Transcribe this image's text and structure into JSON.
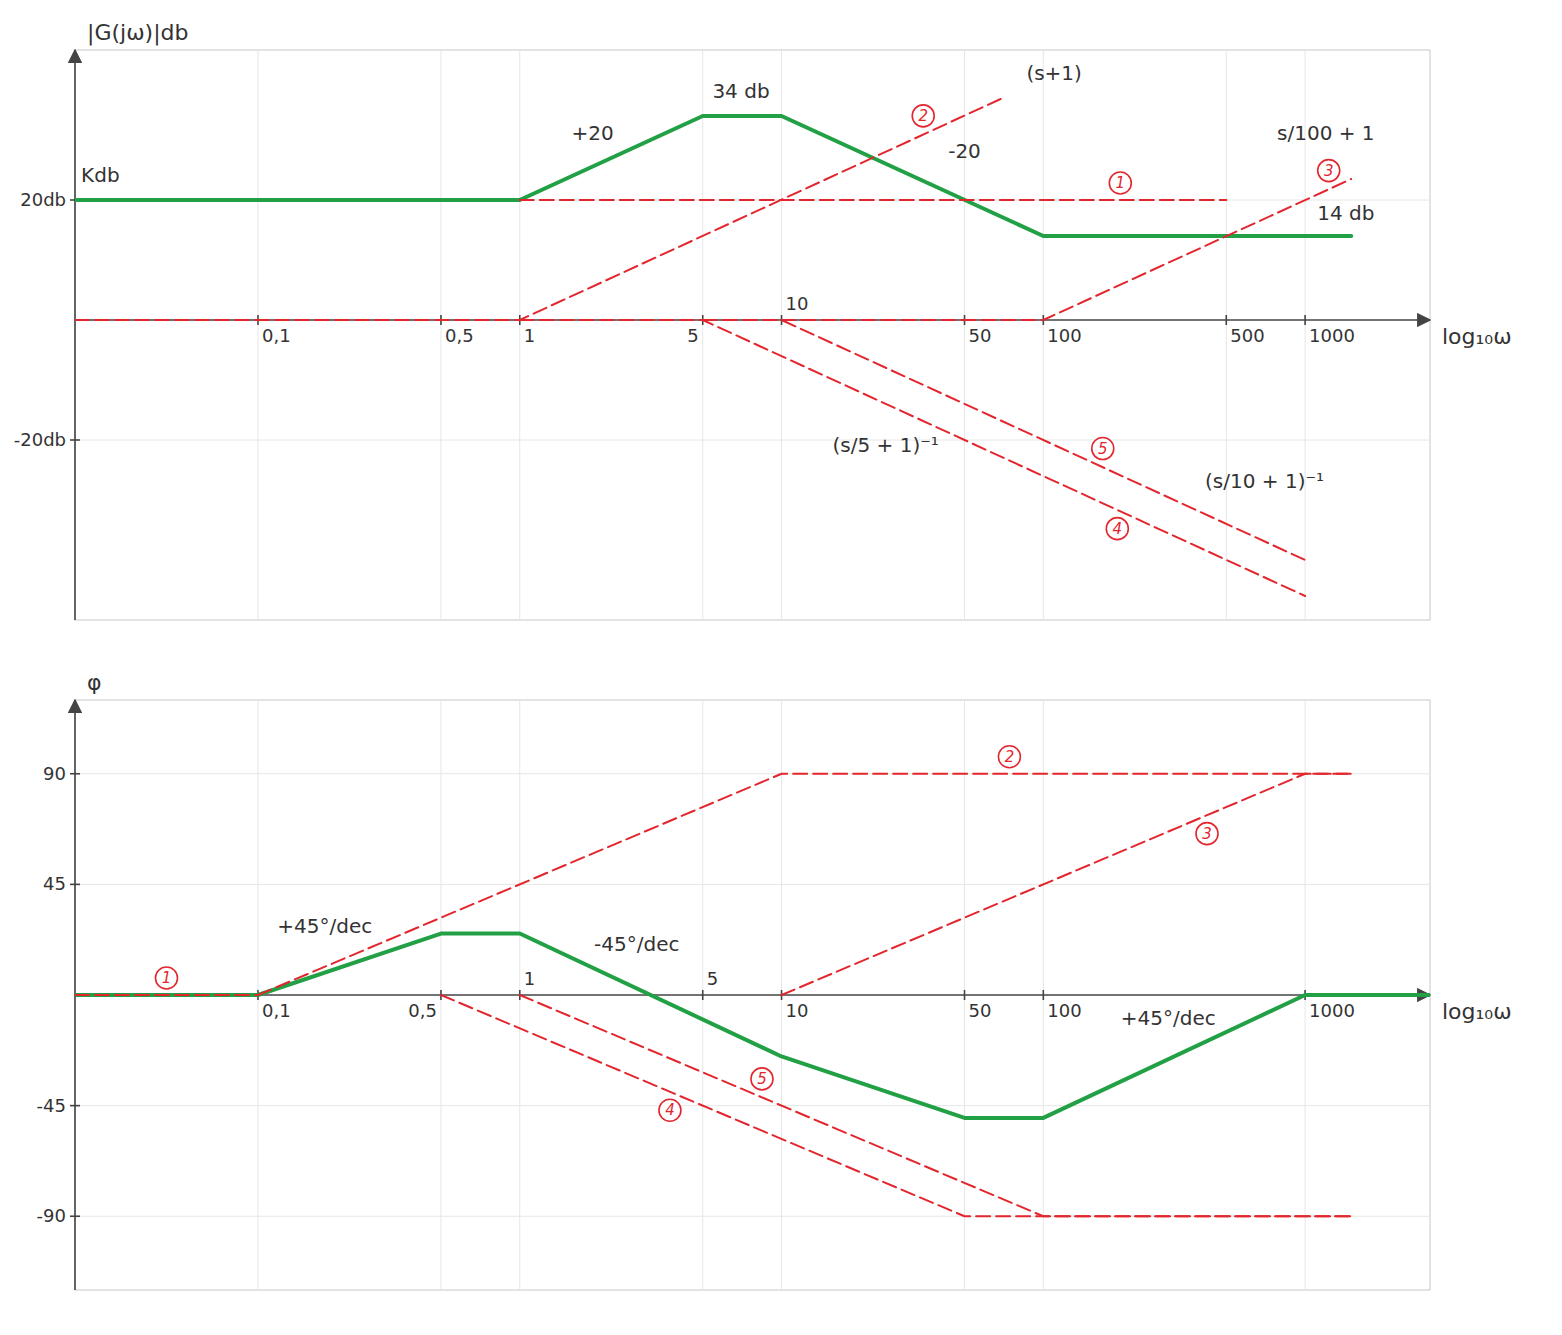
{
  "chart_data": [
    {
      "type": "line",
      "log": "x",
      "grid": true,
      "x_label": "log₁₀ω",
      "y_label": "|G(jω)|db",
      "xlim": [
        0.02,
        3000
      ],
      "ylim": [
        -50,
        45
      ],
      "xticks": [
        {
          "value": 0.1,
          "label": "0,1"
        },
        {
          "value": 0.5,
          "label": "0,5"
        },
        1,
        5,
        10,
        50,
        100,
        500,
        1000
      ],
      "yticks": [
        {
          "value": 20,
          "label": "20db"
        },
        {
          "value": -20,
          "label": "-20db"
        }
      ],
      "series": [
        {
          "color": "#22a045",
          "line_style": "solid",
          "x": [
            0.02,
            1,
            5,
            10,
            100,
            1500
          ],
          "values": [
            20,
            20,
            34,
            34,
            14,
            14
          ]
        },
        {
          "name": "1",
          "color": "#e3262d",
          "line_style": "dashed",
          "x": [
            1,
            500
          ],
          "values": [
            20,
            20
          ]
        },
        {
          "name": "2",
          "color": "#e3262d",
          "line_style": "dashed",
          "x": [
            0.02,
            1,
            70
          ],
          "values": [
            0,
            0,
            37
          ]
        },
        {
          "name": "3",
          "color": "#e3262d",
          "line_style": "dashed",
          "x": [
            10,
            100,
            1500
          ],
          "values": [
            0,
            0,
            23.5
          ]
        },
        {
          "name": "4",
          "color": "#e3262d",
          "line_style": "dashed",
          "x": [
            1,
            5,
            1000
          ],
          "values": [
            0,
            0,
            -46
          ]
        },
        {
          "name": "5",
          "color": "#e3262d",
          "line_style": "dashed",
          "x": [
            5,
            10,
            1000
          ],
          "values": [
            0,
            0,
            -40
          ]
        }
      ],
      "annotations": [
        {
          "text": "Kdb",
          "x": 0.025,
          "y": 23
        },
        {
          "text": "+20",
          "x": 1.9,
          "y": 30
        },
        {
          "text": "34 db",
          "x": 7,
          "y": 37
        },
        {
          "text": "-20",
          "x": 50,
          "y": 27
        },
        {
          "text": "14 db",
          "x": 1200,
          "y": 15
        },
        {
          "text": "(s+1)",
          "x": 110,
          "y": 40
        },
        {
          "text": "s/100 + 1",
          "x": 1200,
          "y": 30
        },
        {
          "text": "(s/5 + 1)⁻¹",
          "x": 25,
          "y": -22
        },
        {
          "text": "(s/10 + 1)⁻¹",
          "x": 700,
          "y": -28
        }
      ]
    },
    {
      "type": "line",
      "log": "x",
      "grid": true,
      "x_label": "log₁₀ω",
      "y_label": "φ",
      "xlim": [
        0.02,
        3000
      ],
      "ylim": [
        -120,
        120
      ],
      "xticks": [
        {
          "value": 0.1,
          "label": "0,1"
        },
        {
          "value": 0.5,
          "label": "0,5"
        },
        1,
        5,
        10,
        50,
        100,
        1000
      ],
      "yticks": [
        90,
        45,
        -45,
        -90
      ],
      "series": [
        {
          "color": "#22a045",
          "line_style": "solid",
          "x": [
            0.02,
            0.1,
            0.5,
            1,
            10,
            50,
            100,
            1000,
            3000
          ],
          "values": [
            0,
            0,
            25,
            25,
            -25,
            -50,
            -50,
            0,
            0
          ]
        },
        {
          "name": "1",
          "color": "#e3262d",
          "line_style": "dashed",
          "x": [
            0.02,
            0.1
          ],
          "values": [
            0,
            0
          ]
        },
        {
          "name": "2",
          "color": "#e3262d",
          "line_style": "dashed",
          "x": [
            0.1,
            10,
            1500
          ],
          "values": [
            0,
            90,
            90
          ]
        },
        {
          "name": "3",
          "color": "#e3262d",
          "line_style": "dashed",
          "x": [
            10,
            1000,
            1500
          ],
          "values": [
            0,
            90,
            90
          ]
        },
        {
          "name": "4",
          "color": "#e3262d",
          "line_style": "dashed",
          "x": [
            0.5,
            50,
            1500
          ],
          "values": [
            0,
            -90,
            -90
          ]
        },
        {
          "name": "5",
          "color": "#e3262d",
          "line_style": "dashed",
          "x": [
            1,
            100,
            1500
          ],
          "values": [
            0,
            -90,
            -90
          ]
        }
      ],
      "annotations": [
        {
          "text": "+45°/dec",
          "x": 0.18,
          "y": 22
        },
        {
          "text": "-45°/dec",
          "x": 2.8,
          "y": 18
        },
        {
          "text": "+45°/dec",
          "x": 300,
          "y": -12
        }
      ]
    }
  ]
}
